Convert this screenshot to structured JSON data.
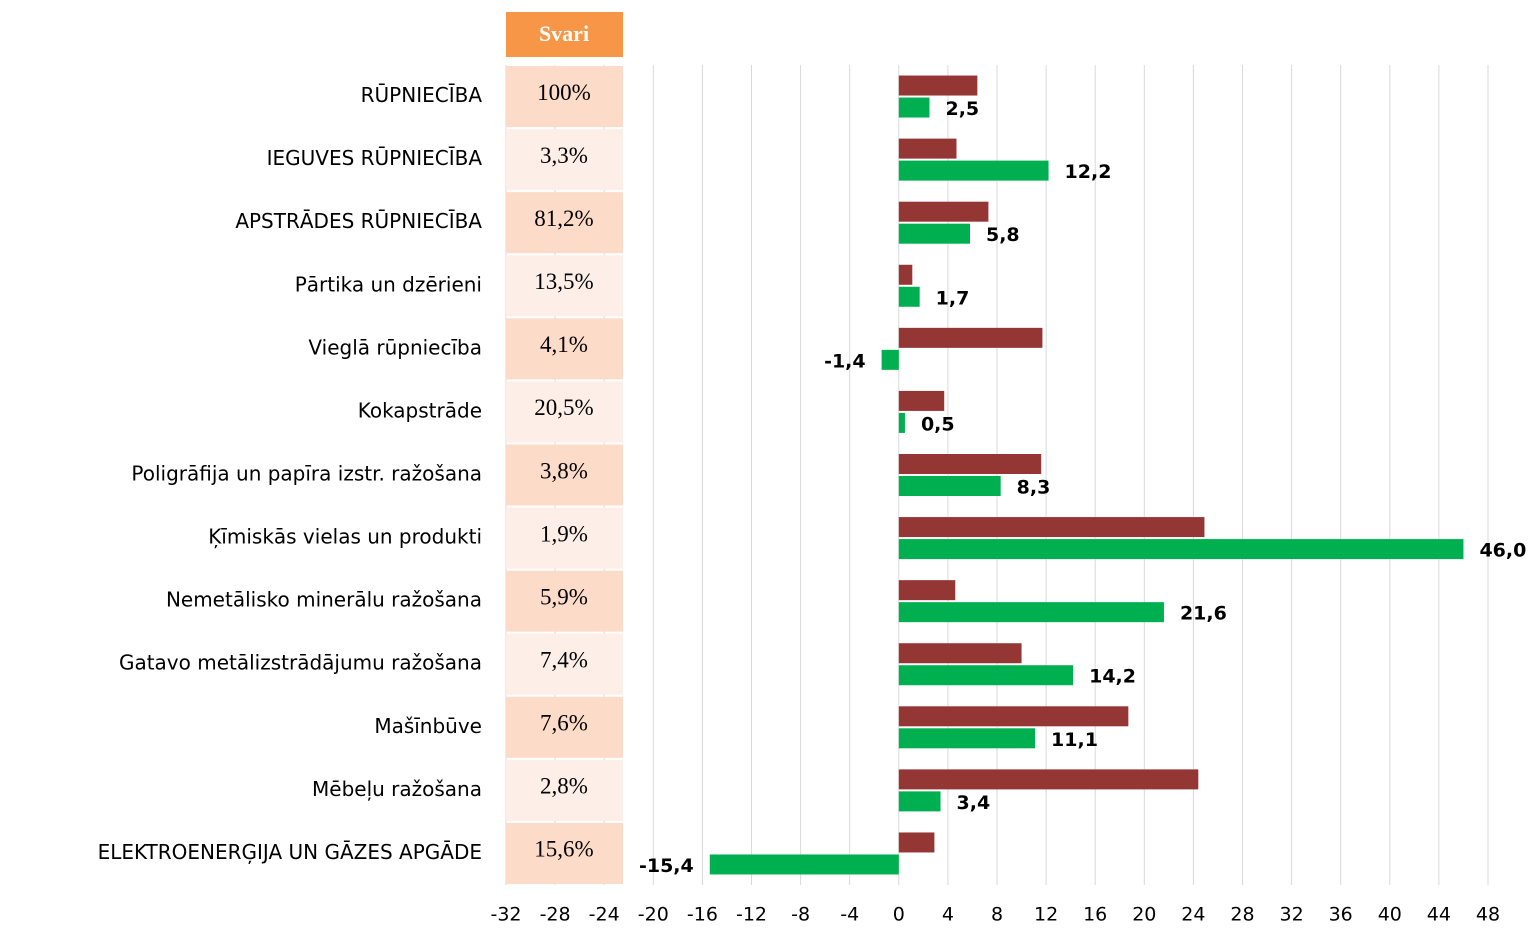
{
  "chart_data": {
    "type": "bar",
    "orientation": "horizontal",
    "weights_header": "Svari",
    "categories": [
      "RŪPNIECĪBA",
      "IEGUVES RŪPNIECĪBA",
      "APSTRĀDES RŪPNIECĪBA",
      "Pārtika un dzērieni",
      "Vieglā rūpniecība",
      "Kokapstrāde",
      "Poligrāfija un papīra izstr. ražošana",
      "Ķīmiskās vielas un produkti",
      "Nemetālisko minerālu ražošana",
      "Gatavo metālizstrādājumu ražošana",
      "Mašīnbūve",
      "Mēbeļu ražošana",
      "ELEKTROENERĢIJA UN GĀZES APGĀDE"
    ],
    "weights": [
      "100%",
      "3,3%",
      "81,2%",
      "13,5%",
      "4,1%",
      "20,5%",
      "3,8%",
      "1,9%",
      "5,9%",
      "7,4%",
      "7,6%",
      "2,8%",
      "15,6%"
    ],
    "series": [
      {
        "color": "#943634",
        "values": [
          6.4,
          4.7,
          7.3,
          1.1,
          11.7,
          3.7,
          11.6,
          24.9,
          4.6,
          10.0,
          18.7,
          24.4,
          2.9
        ]
      },
      {
        "color": "#00b050",
        "values": [
          2.5,
          12.2,
          5.8,
          1.7,
          -1.4,
          0.5,
          8.3,
          46.0,
          21.6,
          14.2,
          11.1,
          3.4,
          -15.4
        ],
        "value_labels": [
          "2,5",
          "12,2",
          "5,8",
          "1,7",
          "-1,4",
          "0,5",
          "8,3",
          "46,0",
          "21,6",
          "14,2",
          "11,1",
          "3,4",
          "-15,4"
        ]
      }
    ],
    "xlim": [
      -32,
      48
    ],
    "xticks": [
      -32,
      -28,
      -24,
      -20,
      -16,
      -12,
      -8,
      -4,
      0,
      4,
      8,
      12,
      16,
      20,
      24,
      28,
      32,
      36,
      40,
      44,
      48
    ],
    "grid": true
  }
}
